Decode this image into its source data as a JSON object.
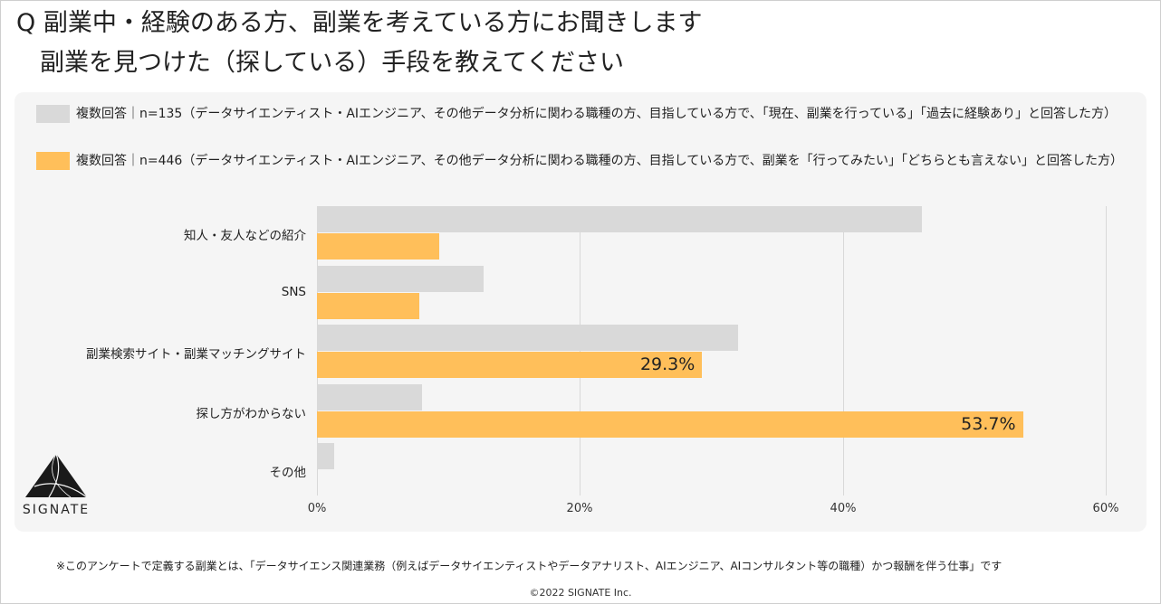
{
  "title": {
    "line1": "Q 副業中・経験のある方、副業を考えている方にお聞きします",
    "line2": "副業を見つけた（探している）手段を教えてください"
  },
  "legend": [
    {
      "text": "複数回答｜n=135（データサイエンティスト・AIエンジニア、その他データ分析に関わる職種の方、目指している方で、「現在、副業を行っている」「過去に経験あり」と回答した方）",
      "color": "#d9d9d9"
    },
    {
      "text": "複数回答｜n=446（データサイエンティスト・AIエンジニア、その他データ分析に関わる職種の方、目指している方で、副業を「行ってみたい」「どちらとも言えない」と回答した方）",
      "color": "#ffbf5a"
    }
  ],
  "chart_data": {
    "type": "bar",
    "orientation": "horizontal",
    "categories": [
      "知人・友人などの紹介",
      "SNS",
      "副業検索サイト・副業マッチングサイト",
      "探し方がわからない",
      "その他"
    ],
    "series": [
      {
        "values": [
          46.0,
          12.7,
          32.0,
          8.0,
          1.3
        ],
        "color": "#d9d9d9"
      },
      {
        "values": [
          9.3,
          7.8,
          29.3,
          53.7,
          0.0
        ],
        "color": "#ffbf5a"
      }
    ],
    "data_labels": [
      "",
      "",
      "29.3%",
      "53.7%",
      ""
    ],
    "xlim": [
      0,
      60
    ],
    "xticks": [
      "0%",
      "20%",
      "40%",
      "60%"
    ],
    "grid": true,
    "legend_position": "top"
  },
  "logo": {
    "text": "SIGNATE"
  },
  "footnote": "※このアンケートで定義する副業とは、「データサイエンス関連業務（例えばデータサイエンティストやデータアナリスト、AIエンジニア、AIコンサルタント等の職種）かつ報酬を伴う仕事」です",
  "copyright": "©2022 SIGNATE Inc."
}
